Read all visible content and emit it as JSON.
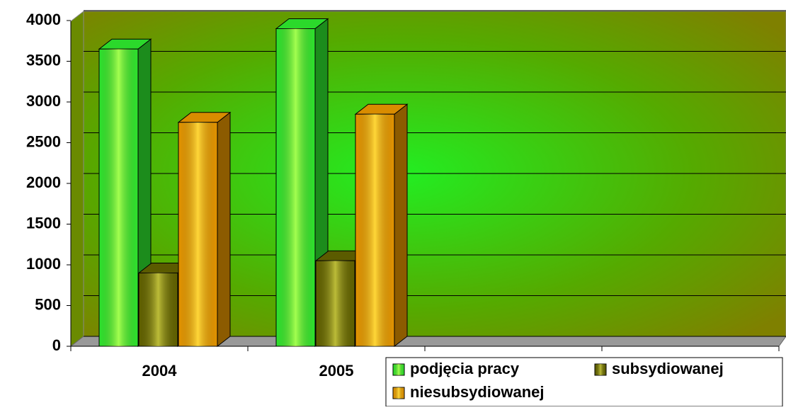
{
  "chart_data": {
    "type": "bar3d",
    "categories": [
      "2004",
      "2005",
      null,
      null
    ],
    "series": [
      {
        "name": "podjęcia pracy",
        "color": "#33ff33",
        "values": [
          3650,
          3900,
          null,
          null
        ]
      },
      {
        "name": "subsydiowanej",
        "color": "#6b6b00",
        "values": [
          900,
          1050,
          null,
          null
        ]
      },
      {
        "name": "niesubsydiowanej",
        "color": "#ffa500",
        "values": [
          2750,
          2850,
          null,
          null
        ]
      }
    ],
    "ylim": [
      0,
      4000
    ],
    "yticks": [
      0,
      500,
      1000,
      1500,
      2000,
      2500,
      3000,
      3500,
      4000
    ],
    "grid": true,
    "legend": "bottom-right"
  }
}
